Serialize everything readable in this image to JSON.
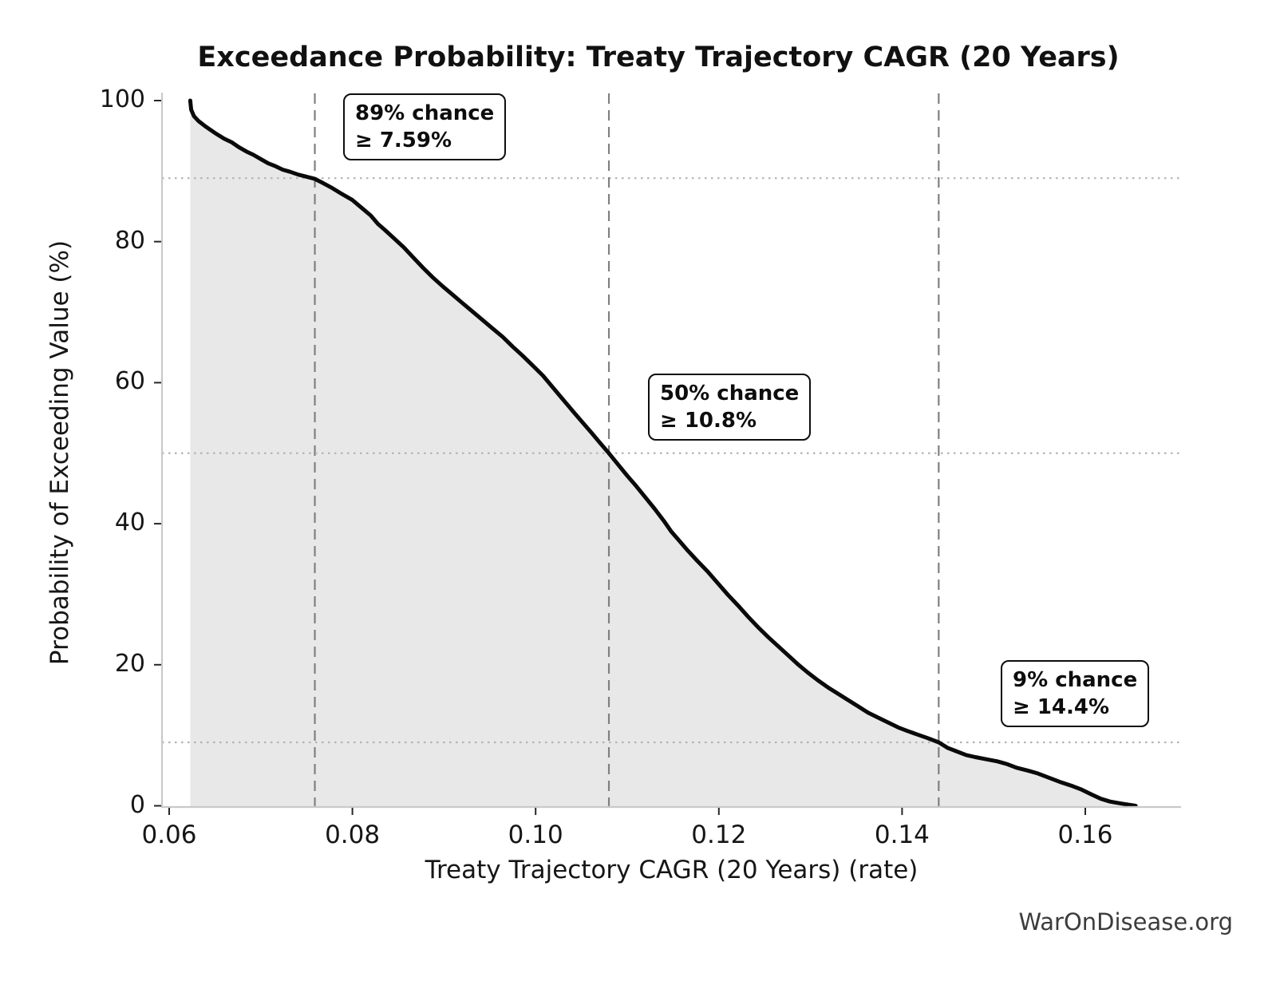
{
  "title": "Exceedance Probability: Treaty Trajectory CAGR (20 Years)",
  "watermark": "WarOnDisease.org",
  "chart_data": {
    "type": "area",
    "title": "Exceedance Probability: Treaty Trajectory CAGR (20 Years)",
    "xlabel": "Treaty Trajectory CAGR (20 Years) (rate)",
    "ylabel": "Probability of Exceeding Value (%)",
    "xlim": [
      0.0592,
      0.1705
    ],
    "ylim": [
      0,
      101
    ],
    "x_ticks": [
      0.06,
      0.08,
      0.1,
      0.12,
      0.14,
      0.16
    ],
    "x_tick_labels": [
      "0.06",
      "0.08",
      "0.10",
      "0.12",
      "0.14",
      "0.16"
    ],
    "y_ticks": [
      0,
      20,
      40,
      60,
      80,
      100
    ],
    "y_tick_labels": [
      "0",
      "20",
      "40",
      "60",
      "80",
      "100"
    ],
    "grid": "reference lines only (dotted horizontal at 89/50/9, dashed vertical at thresholds)",
    "legend": "none",
    "line_color": "#0a0a0a",
    "fill_color": "#e8e8e8",
    "dashed_line_color": "#808080",
    "dotted_line_color": "#b3b3b3",
    "spine_color": "#c9c9c9",
    "reference_lines": [
      {
        "x": 0.0759,
        "y": 89,
        "label_line1": "89% chance",
        "label_line2": "≥ 7.59%"
      },
      {
        "x": 0.108,
        "y": 50,
        "label_line1": "50% chance",
        "label_line2": "≥ 10.8%"
      },
      {
        "x": 0.144,
        "y": 9,
        "label_line1": "9% chance",
        "label_line2": "≥ 14.4%"
      }
    ],
    "points": [
      [
        0.0623,
        100.0
      ],
      [
        0.0624,
        98.7
      ],
      [
        0.0627,
        97.8
      ],
      [
        0.0632,
        97.1
      ],
      [
        0.064,
        96.3
      ],
      [
        0.065,
        95.4
      ],
      [
        0.066,
        94.6
      ],
      [
        0.0668,
        94.1
      ],
      [
        0.0676,
        93.4
      ],
      [
        0.0684,
        92.8
      ],
      [
        0.0692,
        92.3
      ],
      [
        0.07,
        91.7
      ],
      [
        0.0708,
        91.1
      ],
      [
        0.0716,
        90.7
      ],
      [
        0.0724,
        90.2
      ],
      [
        0.0732,
        89.9
      ],
      [
        0.0741,
        89.5
      ],
      [
        0.075,
        89.2
      ],
      [
        0.0759,
        88.9
      ],
      [
        0.0768,
        88.3
      ],
      [
        0.0778,
        87.6
      ],
      [
        0.0788,
        86.8
      ],
      [
        0.08,
        85.9
      ],
      [
        0.081,
        84.8
      ],
      [
        0.082,
        83.7
      ],
      [
        0.0828,
        82.5
      ],
      [
        0.0836,
        81.6
      ],
      [
        0.0846,
        80.4
      ],
      [
        0.0856,
        79.2
      ],
      [
        0.0866,
        77.8
      ],
      [
        0.0877,
        76.3
      ],
      [
        0.0888,
        74.9
      ],
      [
        0.0899,
        73.6
      ],
      [
        0.091,
        72.4
      ],
      [
        0.092,
        71.3
      ],
      [
        0.0931,
        70.1
      ],
      [
        0.0942,
        68.9
      ],
      [
        0.0953,
        67.7
      ],
      [
        0.0964,
        66.5
      ],
      [
        0.0975,
        65.1
      ],
      [
        0.0986,
        63.8
      ],
      [
        0.0997,
        62.4
      ],
      [
        0.1008,
        61.0
      ],
      [
        0.1019,
        59.3
      ],
      [
        0.103,
        57.6
      ],
      [
        0.1041,
        55.9
      ],
      [
        0.1051,
        54.4
      ],
      [
        0.1061,
        52.9
      ],
      [
        0.107,
        51.5
      ],
      [
        0.108,
        50.0
      ],
      [
        0.109,
        48.4
      ],
      [
        0.11,
        46.8
      ],
      [
        0.111,
        45.3
      ],
      [
        0.112,
        43.7
      ],
      [
        0.113,
        42.1
      ],
      [
        0.114,
        40.4
      ],
      [
        0.1148,
        38.9
      ],
      [
        0.1156,
        37.7
      ],
      [
        0.1166,
        36.2
      ],
      [
        0.1176,
        34.8
      ],
      [
        0.1188,
        33.2
      ],
      [
        0.12,
        31.4
      ],
      [
        0.121,
        29.9
      ],
      [
        0.1221,
        28.4
      ],
      [
        0.1232,
        26.8
      ],
      [
        0.1243,
        25.3
      ],
      [
        0.1254,
        23.9
      ],
      [
        0.1265,
        22.6
      ],
      [
        0.1276,
        21.3
      ],
      [
        0.1286,
        20.1
      ],
      [
        0.1297,
        18.9
      ],
      [
        0.1308,
        17.8
      ],
      [
        0.1319,
        16.8
      ],
      [
        0.133,
        15.9
      ],
      [
        0.1341,
        15.0
      ],
      [
        0.1352,
        14.1
      ],
      [
        0.1363,
        13.2
      ],
      [
        0.1374,
        12.5
      ],
      [
        0.1385,
        11.8
      ],
      [
        0.1396,
        11.1
      ],
      [
        0.1406,
        10.6
      ],
      [
        0.1417,
        10.1
      ],
      [
        0.1428,
        9.6
      ],
      [
        0.144,
        9.0
      ],
      [
        0.145,
        8.2
      ],
      [
        0.146,
        7.7
      ],
      [
        0.147,
        7.2
      ],
      [
        0.148,
        6.9
      ],
      [
        0.1492,
        6.6
      ],
      [
        0.1504,
        6.3
      ],
      [
        0.1515,
        5.9
      ],
      [
        0.1525,
        5.4
      ],
      [
        0.1537,
        5.0
      ],
      [
        0.1548,
        4.6
      ],
      [
        0.156,
        4.0
      ],
      [
        0.1574,
        3.3
      ],
      [
        0.1586,
        2.8
      ],
      [
        0.1596,
        2.3
      ],
      [
        0.1607,
        1.6
      ],
      [
        0.1617,
        1.0
      ],
      [
        0.1627,
        0.6
      ],
      [
        0.164,
        0.3
      ],
      [
        0.165,
        0.1
      ],
      [
        0.1655,
        0.0
      ]
    ]
  }
}
